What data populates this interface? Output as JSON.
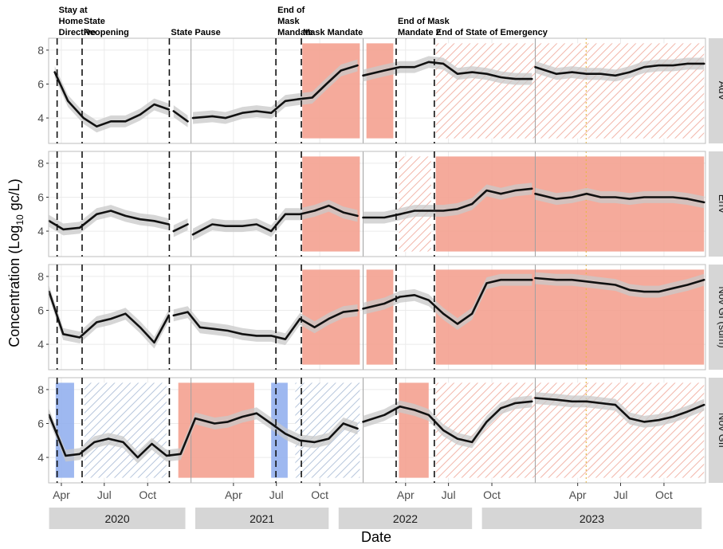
{
  "chart_data": {
    "type": "line",
    "xlabel": "Date",
    "ylabel": "Concentration (Log10 gc/L)",
    "ylabel_main": "Concentration (Log",
    "ylabel_sub": "10",
    "ylabel_tail": " gc/L)",
    "ylim": [
      2.5,
      8.7
    ],
    "y_ticks": [
      4,
      6,
      8
    ],
    "x_ticks": [
      {
        "label": "Apr",
        "date": "2020-04-01"
      },
      {
        "label": "Jul",
        "date": "2020-07-01"
      },
      {
        "label": "Oct",
        "date": "2020-10-01"
      },
      {
        "label": "Apr",
        "date": "2021-04-01"
      },
      {
        "label": "Jul",
        "date": "2021-07-01"
      },
      {
        "label": "Oct",
        "date": "2021-10-01"
      },
      {
        "label": "Apr",
        "date": "2022-04-01"
      },
      {
        "label": "Jul",
        "date": "2022-07-01"
      },
      {
        "label": "Oct",
        "date": "2022-10-01"
      },
      {
        "label": "Apr",
        "date": "2023-04-01"
      },
      {
        "label": "Jul",
        "date": "2023-07-01"
      },
      {
        "label": "Oct",
        "date": "2023-10-01"
      }
    ],
    "years": [
      {
        "label": "2020",
        "start": "2020-03-06",
        "end": "2020-12-20"
      },
      {
        "label": "2021",
        "start": "2021-01-10",
        "end": "2021-10-20"
      },
      {
        "label": "2022",
        "start": "2021-11-10",
        "end": "2022-08-20"
      },
      {
        "label": "2023",
        "start": "2022-09-10",
        "end": "2023-12-20"
      }
    ],
    "events": [
      {
        "label": "Stay at\nHome\nDirective",
        "date": "2020-03-23"
      },
      {
        "label": "State\nReopening",
        "date": "2020-05-15"
      },
      {
        "label": "State Pause",
        "date": "2020-11-16"
      },
      {
        "label": "End of\nMask\nMandate",
        "date": "2021-06-30"
      },
      {
        "label": "Mask Mandate",
        "date": "2021-08-23"
      },
      {
        "label": "End of Mask\nMandate 2",
        "date": "2022-03-12"
      },
      {
        "label": "End of State of Emergency",
        "date": "2022-06-01"
      }
    ],
    "year_boundaries": [
      "2021-01-01",
      "2022-01-01",
      "2023-01-01"
    ],
    "reference_line": {
      "date": "2023-04-19",
      "color": "#e8b84a"
    },
    "colors": {
      "line": "#111111",
      "ribbon": "#c8c8c8",
      "high": "#f4a190",
      "low": "#93b0ee",
      "hatch_high": "#f2b6aa",
      "hatch_low": "#b7c6dc",
      "panel_border": "#bdbdbd",
      "strip": "#d6d6d6"
    },
    "panels": [
      {
        "name": "AdV",
        "shades": [
          {
            "start": "2021-08-25",
            "end": "2021-12-25",
            "kind": "high"
          },
          {
            "start": "2022-01-08",
            "end": "2022-03-06",
            "kind": "high"
          },
          {
            "start": "2022-06-04",
            "end": "2023-12-25",
            "kind": "hatch_high"
          }
        ],
        "segments": [
          {
            "x": [
              "2020-03-18",
              "2020-04-15",
              "2020-05-18",
              "2020-06-15",
              "2020-07-15",
              "2020-08-15",
              "2020-09-15",
              "2020-10-15",
              "2020-11-15"
            ],
            "y": [
              6.7,
              5.0,
              4.0,
              3.5,
              3.8,
              3.8,
              4.2,
              4.8,
              4.5
            ]
          },
          {
            "x": [
              "2020-11-25",
              "2020-12-25"
            ],
            "y": [
              4.4,
              3.8
            ]
          },
          {
            "x": [
              "2021-01-05",
              "2021-02-15",
              "2021-03-15",
              "2021-04-20",
              "2021-05-20",
              "2021-06-20",
              "2021-07-20",
              "2021-08-15",
              "2021-09-15",
              "2021-10-15",
              "2021-11-15",
              "2021-12-20"
            ],
            "y": [
              4.0,
              4.1,
              4.0,
              4.3,
              4.4,
              4.3,
              5.0,
              5.1,
              5.2,
              6.0,
              6.8,
              7.1
            ]
          },
          {
            "x": [
              "2022-01-01",
              "2022-02-15",
              "2022-03-20",
              "2022-04-20",
              "2022-05-20",
              "2022-06-20",
              "2022-07-20",
              "2022-08-20",
              "2022-09-20",
              "2022-10-20",
              "2022-11-20",
              "2022-12-25"
            ],
            "y": [
              6.5,
              6.8,
              7.0,
              7.0,
              7.3,
              7.2,
              6.6,
              6.7,
              6.6,
              6.4,
              6.3,
              6.3
            ]
          },
          {
            "x": [
              "2023-01-01",
              "2023-02-15",
              "2023-03-20",
              "2023-04-20",
              "2023-05-20",
              "2023-06-20",
              "2023-07-20",
              "2023-08-20",
              "2023-09-20",
              "2023-10-20",
              "2023-11-20",
              "2023-12-25"
            ],
            "y": [
              7.0,
              6.6,
              6.7,
              6.6,
              6.6,
              6.5,
              6.7,
              7.0,
              7.1,
              7.1,
              7.2,
              7.2
            ]
          }
        ]
      },
      {
        "name": "EnV",
        "shades": [
          {
            "start": "2021-08-25",
            "end": "2021-12-25",
            "kind": "high"
          },
          {
            "start": "2022-03-18",
            "end": "2022-05-25",
            "kind": "hatch_high"
          },
          {
            "start": "2022-06-04",
            "end": "2023-12-25",
            "kind": "high"
          }
        ],
        "segments": [
          {
            "x": [
              "2020-03-06",
              "2020-04-05",
              "2020-05-10",
              "2020-06-15",
              "2020-07-15",
              "2020-08-15",
              "2020-09-15",
              "2020-10-15",
              "2020-11-15"
            ],
            "y": [
              4.6,
              4.1,
              4.2,
              5.0,
              5.2,
              4.9,
              4.7,
              4.6,
              4.4
            ]
          },
          {
            "x": [
              "2020-11-25",
              "2020-12-25"
            ],
            "y": [
              4.0,
              4.4
            ]
          },
          {
            "x": [
              "2021-01-05",
              "2021-02-15",
              "2021-03-15",
              "2021-04-20",
              "2021-05-20",
              "2021-06-20",
              "2021-07-20",
              "2021-08-20",
              "2021-09-20",
              "2021-10-20",
              "2021-11-20",
              "2021-12-20"
            ],
            "y": [
              3.8,
              4.4,
              4.3,
              4.3,
              4.4,
              4.0,
              5.0,
              5.0,
              5.2,
              5.5,
              5.1,
              4.9
            ]
          },
          {
            "x": [
              "2022-01-01",
              "2022-02-15",
              "2022-03-20",
              "2022-04-20",
              "2022-05-20",
              "2022-06-20",
              "2022-07-20",
              "2022-08-20",
              "2022-09-20",
              "2022-10-20",
              "2022-11-20",
              "2022-12-25"
            ],
            "y": [
              4.8,
              4.8,
              5.0,
              5.2,
              5.2,
              5.2,
              5.3,
              5.6,
              6.4,
              6.2,
              6.4,
              6.5
            ]
          },
          {
            "x": [
              "2023-01-01",
              "2023-02-15",
              "2023-03-20",
              "2023-04-20",
              "2023-05-20",
              "2023-06-20",
              "2023-07-20",
              "2023-08-20",
              "2023-09-20",
              "2023-10-20",
              "2023-11-20",
              "2023-12-25"
            ],
            "y": [
              6.2,
              5.9,
              6.0,
              6.2,
              6.0,
              6.0,
              5.9,
              6.0,
              6.0,
              6.0,
              5.9,
              5.7
            ]
          }
        ]
      },
      {
        "name": "Nov GI (sum)",
        "shades": [
          {
            "start": "2021-08-25",
            "end": "2021-12-25",
            "kind": "high"
          },
          {
            "start": "2022-01-08",
            "end": "2022-03-06",
            "kind": "high"
          },
          {
            "start": "2022-06-04",
            "end": "2023-12-25",
            "kind": "high"
          }
        ],
        "segments": [
          {
            "x": [
              "2020-03-06",
              "2020-04-05",
              "2020-05-10",
              "2020-06-15",
              "2020-07-15",
              "2020-08-15",
              "2020-09-15",
              "2020-10-15",
              "2020-11-15"
            ],
            "y": [
              7.1,
              4.6,
              4.4,
              5.3,
              5.5,
              5.8,
              5.0,
              4.1,
              5.7
            ]
          },
          {
            "x": [
              "2020-11-25",
              "2020-12-25",
              "2021-01-20",
              "2021-02-20",
              "2021-03-20",
              "2021-04-20",
              "2021-05-20",
              "2021-06-20",
              "2021-07-20",
              "2021-08-20",
              "2021-09-20",
              "2021-10-20",
              "2021-11-20",
              "2021-12-20"
            ],
            "y": [
              5.7,
              5.9,
              5.0,
              4.9,
              4.8,
              4.6,
              4.5,
              4.5,
              4.3,
              5.5,
              5.0,
              5.5,
              5.9,
              6.0
            ]
          },
          {
            "x": [
              "2022-01-01",
              "2022-02-15",
              "2022-03-20",
              "2022-04-20",
              "2022-05-20",
              "2022-06-20",
              "2022-07-20",
              "2022-08-20",
              "2022-09-20",
              "2022-10-20",
              "2022-11-20",
              "2022-12-25"
            ],
            "y": [
              6.1,
              6.4,
              6.8,
              6.9,
              6.6,
              5.8,
              5.2,
              5.8,
              7.6,
              7.8,
              7.8,
              7.8
            ]
          },
          {
            "x": [
              "2023-01-01",
              "2023-02-15",
              "2023-03-20",
              "2023-04-20",
              "2023-05-20",
              "2023-06-20",
              "2023-07-20",
              "2023-08-20",
              "2023-09-20",
              "2023-10-20",
              "2023-11-20",
              "2023-12-25"
            ],
            "y": [
              7.9,
              7.8,
              7.8,
              7.7,
              7.6,
              7.5,
              7.2,
              7.1,
              7.1,
              7.3,
              7.5,
              7.8
            ]
          }
        ]
      },
      {
        "name": "Nov GII",
        "shades": [
          {
            "start": "2020-03-20",
            "end": "2020-04-28",
            "kind": "low"
          },
          {
            "start": "2020-05-20",
            "end": "2020-11-10",
            "kind": "hatch_low"
          },
          {
            "start": "2020-12-05",
            "end": "2021-05-15",
            "kind": "high"
          },
          {
            "start": "2021-06-20",
            "end": "2021-07-25",
            "kind": "low"
          },
          {
            "start": "2021-08-10",
            "end": "2021-12-25",
            "kind": "hatch_low"
          },
          {
            "start": "2022-03-18",
            "end": "2022-05-20",
            "kind": "high"
          },
          {
            "start": "2022-06-04",
            "end": "2023-12-25",
            "kind": "hatch_high"
          }
        ],
        "segments": [
          {
            "x": [
              "2020-03-06",
              "2020-04-10",
              "2020-05-10",
              "2020-06-10",
              "2020-07-10",
              "2020-08-10",
              "2020-09-10",
              "2020-10-10",
              "2020-11-10",
              "2020-12-10",
              "2021-01-10",
              "2021-02-20",
              "2021-03-20",
              "2021-04-20",
              "2021-05-20",
              "2021-06-20",
              "2021-07-20",
              "2021-08-20",
              "2021-09-20",
              "2021-10-20",
              "2021-11-20",
              "2021-12-20"
            ],
            "y": [
              6.5,
              4.1,
              4.2,
              4.9,
              5.1,
              4.9,
              4.0,
              4.8,
              4.1,
              4.2,
              6.3,
              6.0,
              6.1,
              6.4,
              6.6,
              6.0,
              5.4,
              5.0,
              4.9,
              5.1,
              6.0,
              5.7
            ]
          },
          {
            "x": [
              "2022-01-01",
              "2022-02-15",
              "2022-03-20",
              "2022-04-20",
              "2022-05-20",
              "2022-06-20",
              "2022-07-20",
              "2022-08-20",
              "2022-09-20",
              "2022-10-20",
              "2022-11-20",
              "2022-12-25"
            ],
            "y": [
              6.1,
              6.5,
              7.0,
              6.8,
              6.5,
              5.6,
              5.1,
              4.9,
              6.1,
              6.9,
              7.2,
              7.3
            ]
          },
          {
            "x": [
              "2023-01-01",
              "2023-02-15",
              "2023-03-20",
              "2023-04-20",
              "2023-05-20",
              "2023-06-20",
              "2023-07-20",
              "2023-08-20",
              "2023-09-20",
              "2023-10-20",
              "2023-11-20",
              "2023-12-25"
            ],
            "y": [
              7.5,
              7.4,
              7.3,
              7.3,
              7.2,
              7.1,
              6.3,
              6.1,
              6.2,
              6.4,
              6.7,
              7.1
            ]
          }
        ]
      }
    ]
  }
}
